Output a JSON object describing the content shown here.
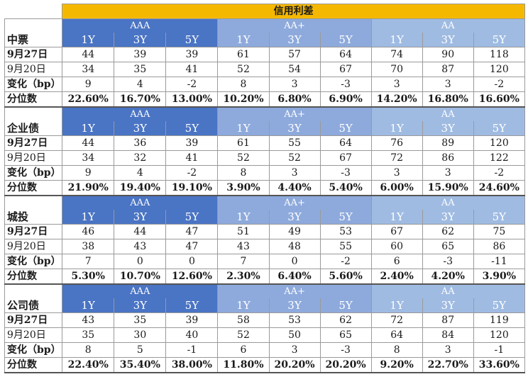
{
  "title": "信用利差",
  "grades": [
    "AAA",
    "AA+",
    "AA"
  ],
  "tenors": [
    "1Y",
    "3Y",
    "5Y"
  ],
  "row_labels": {
    "current": "9月27日",
    "previous": "9月20日",
    "change": "变化（bp）",
    "percentile": "分位数"
  },
  "sections": [
    {
      "name": "中票",
      "current": [
        "44",
        "39",
        "39",
        "61",
        "57",
        "64",
        "74",
        "90",
        "118"
      ],
      "previous": [
        "34",
        "35",
        "41",
        "52",
        "54",
        "67",
        "70",
        "87",
        "120"
      ],
      "change": [
        "9",
        "4",
        "-2",
        "8",
        "3",
        "-3",
        "3",
        "3",
        "-2"
      ],
      "percentile": [
        "22.60%",
        "16.70%",
        "13.00%",
        "10.20%",
        "6.80%",
        "6.90%",
        "14.20%",
        "16.80%",
        "16.60%"
      ]
    },
    {
      "name": "企业债",
      "current": [
        "44",
        "36",
        "39",
        "61",
        "55",
        "64",
        "76",
        "89",
        "120"
      ],
      "previous": [
        "34",
        "32",
        "41",
        "52",
        "52",
        "67",
        "72",
        "86",
        "122"
      ],
      "change": [
        "9",
        "4",
        "-2",
        "8",
        "3",
        "-3",
        "3",
        "3",
        "-2"
      ],
      "percentile": [
        "21.90%",
        "19.40%",
        "19.10%",
        "3.90%",
        "4.40%",
        "5.40%",
        "6.00%",
        "15.90%",
        "24.60%"
      ]
    },
    {
      "name": "城投",
      "current": [
        "46",
        "44",
        "47",
        "51",
        "49",
        "53",
        "67",
        "62",
        "75"
      ],
      "previous": [
        "38",
        "43",
        "47",
        "43",
        "48",
        "55",
        "60",
        "65",
        "86"
      ],
      "change": [
        "7",
        "0",
        "0",
        "7",
        "0",
        "-2",
        "6",
        "-3",
        "-11"
      ],
      "percentile": [
        "5.30%",
        "10.70%",
        "12.60%",
        "2.30%",
        "6.40%",
        "5.60%",
        "2.40%",
        "4.20%",
        "3.90%"
      ]
    },
    {
      "name": "公司债",
      "current": [
        "43",
        "35",
        "39",
        "58",
        "53",
        "62",
        "72",
        "87",
        "119"
      ],
      "previous": [
        "35",
        "30",
        "40",
        "52",
        "50",
        "65",
        "64",
        "84",
        "120"
      ],
      "change": [
        "8",
        "5",
        "-1",
        "6",
        "3",
        "-3",
        "8",
        "3",
        "-1"
      ],
      "percentile": [
        "22.40%",
        "35.40%",
        "38.00%",
        "11.80%",
        "20.20%",
        "20.20%",
        "9.20%",
        "22.70%",
        "33.60%"
      ]
    }
  ],
  "colors": {
    "title_bg": "#f5b800",
    "aaa_bg": "#4a74c4",
    "aa_plus_bg": "#8eaadc",
    "aa_bg": "#9fbbe2"
  }
}
